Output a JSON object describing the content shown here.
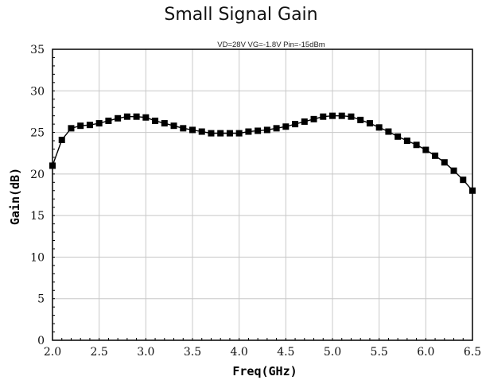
{
  "chart_data": {
    "type": "line",
    "title": "Small Signal Gain",
    "subtitle": "VD=28V   VG=-1.8V   Pin=-15dBm",
    "xlabel": "Freq(GHz)",
    "ylabel": "Gain(dB)",
    "xlim": [
      2.0,
      6.5
    ],
    "ylim": [
      0,
      35
    ],
    "xticks": [
      "2.0",
      "2.5",
      "3.0",
      "3.5",
      "4.0",
      "4.5",
      "5.0",
      "5.5",
      "6.0",
      "6.5"
    ],
    "yticks": [
      "0",
      "5",
      "10",
      "15",
      "20",
      "25",
      "30",
      "35"
    ],
    "grid": true,
    "line_color": "#000000",
    "marker": "square",
    "series": [
      {
        "x": [
          2.0,
          2.1,
          2.2,
          2.3,
          2.4,
          2.5,
          2.6,
          2.7,
          2.8,
          2.9,
          3.0,
          3.1,
          3.2,
          3.3,
          3.4,
          3.5,
          3.6,
          3.7,
          3.8,
          3.9,
          4.0,
          4.1,
          4.2,
          4.3,
          4.4,
          4.5,
          4.6,
          4.7,
          4.8,
          4.9,
          5.0,
          5.1,
          5.2,
          5.3,
          5.4,
          5.5,
          5.6,
          5.7,
          5.8,
          5.9,
          6.0,
          6.1,
          6.2,
          6.3,
          6.4,
          6.5
        ],
        "y": [
          21.0,
          24.1,
          25.5,
          25.8,
          25.9,
          26.1,
          26.4,
          26.7,
          26.9,
          26.9,
          26.8,
          26.4,
          26.1,
          25.8,
          25.5,
          25.3,
          25.1,
          24.9,
          24.9,
          24.9,
          24.9,
          25.1,
          25.2,
          25.3,
          25.5,
          25.7,
          26.0,
          26.3,
          26.6,
          26.9,
          27.0,
          27.0,
          26.9,
          26.5,
          26.1,
          25.6,
          25.1,
          24.5,
          24.0,
          23.5,
          22.9,
          22.2,
          21.4,
          20.4,
          19.3,
          18.0
        ]
      }
    ]
  }
}
